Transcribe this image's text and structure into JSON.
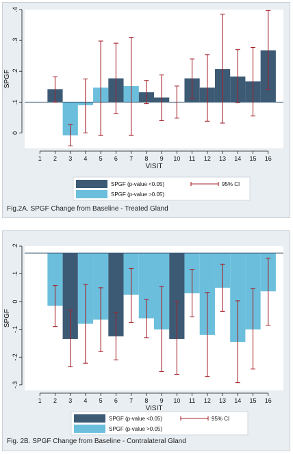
{
  "colors": {
    "significant": "#3d5a75",
    "nonsignificant": "#6bbfdc",
    "ci": "#a4232b",
    "panel_bg": "#e9eef2",
    "plot_bg": "#ffffff"
  },
  "chart_data": [
    {
      "type": "bar",
      "title": "Fig.2A. SPGF Change from Baseline - Treated Gland",
      "xlabel": "VISIT",
      "ylabel": "SPGF",
      "baseline": 0.1,
      "ylim": [
        -0.05,
        0.4
      ],
      "yticks": [
        0,
        0.1,
        0.2,
        0.3,
        0.4
      ],
      "ytick_labels": [
        "0",
        ".1",
        ".2",
        ".3",
        ".4"
      ],
      "categories": [
        "1",
        "2",
        "3",
        "4",
        "5",
        "6",
        "7",
        "8",
        "9",
        "10",
        "11",
        "12",
        "13",
        "14",
        "15",
        "16"
      ],
      "values": [
        0.1,
        0.142,
        -0.008,
        0.09,
        0.147,
        0.177,
        0.152,
        0.132,
        0.115,
        0.1,
        0.177,
        0.147,
        0.207,
        0.183,
        0.167,
        0.268
      ],
      "significant": [
        false,
        true,
        false,
        false,
        false,
        true,
        false,
        true,
        true,
        true,
        true,
        true,
        true,
        true,
        true,
        true
      ],
      "ci_low": [
        null,
        0.1,
        -0.042,
        0.0,
        -0.008,
        0.062,
        -0.008,
        0.095,
        0.04,
        0.048,
        0.112,
        0.038,
        0.032,
        0.098,
        0.055,
        0.14
      ],
      "ci_high": [
        null,
        0.182,
        0.027,
        0.175,
        0.298,
        0.291,
        0.31,
        0.17,
        0.188,
        0.152,
        0.24,
        0.254,
        0.385,
        0.27,
        0.277,
        0.397
      ],
      "legend": {
        "items": [
          "SPGF (p-value <0.05)",
          "SPGF (p-value >0.05)"
        ],
        "ci_label": "95% CI"
      },
      "grid": false,
      "legend_position": "bottom"
    },
    {
      "type": "bar",
      "title": "Fig. 2B. SPGF Change from Baseline - Contralateral Gland",
      "xlabel": "VISIT",
      "ylabel": "SPGF",
      "baseline": 0.175,
      "ylim": [
        -0.32,
        0.2
      ],
      "yticks": [
        -0.3,
        -0.2,
        -0.1,
        0,
        0.1,
        0.2
      ],
      "ytick_labels": [
        "-.3",
        "-.2",
        "-.1",
        "0",
        ".1",
        ".2"
      ],
      "categories": [
        "1",
        "2",
        "3",
        "4",
        "5",
        "6",
        "7",
        "8",
        "9",
        "10",
        "11",
        "12",
        "13",
        "14",
        "15",
        "16"
      ],
      "values": [
        0.175,
        -0.015,
        -0.135,
        -0.08,
        -0.065,
        -0.125,
        0.025,
        -0.06,
        -0.1,
        -0.135,
        0.03,
        -0.12,
        0.05,
        -0.145,
        -0.1,
        0.037
      ],
      "significant": [
        false,
        false,
        true,
        false,
        false,
        true,
        false,
        false,
        false,
        true,
        false,
        false,
        false,
        false,
        false,
        false
      ],
      "ci_low": [
        null,
        -0.09,
        -0.235,
        -0.222,
        -0.18,
        -0.21,
        -0.075,
        -0.13,
        -0.252,
        -0.262,
        -0.055,
        -0.27,
        -0.035,
        -0.292,
        -0.243,
        -0.085
      ],
      "ci_high": [
        null,
        0.058,
        -0.03,
        0.062,
        0.05,
        -0.04,
        0.12,
        0.008,
        0.055,
        0.0,
        0.115,
        0.033,
        0.135,
        0.003,
        0.048,
        0.157
      ],
      "legend": {
        "items": [
          "SPGF (p-value <0.05)",
          "SPGF (p-value >0.05)"
        ],
        "ci_label": "95% CI"
      },
      "grid": false,
      "legend_position": "bottom"
    }
  ]
}
